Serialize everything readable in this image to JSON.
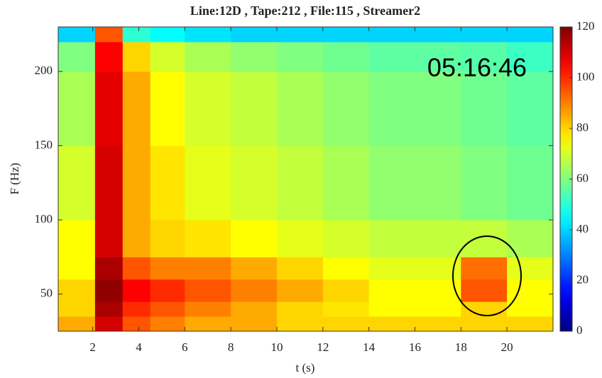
{
  "chart_data": {
    "type": "spectrogram",
    "title": "Line:12D , Tape:212 , File:115 , Streamer2",
    "x_label": "t (s)",
    "y_label": "F (Hz)",
    "annotation": "05:16:46",
    "xbins": [
      0.5,
      2.1,
      3.3,
      4.5,
      6,
      8,
      10,
      12,
      14,
      18,
      20,
      22
    ],
    "ybins": [
      25,
      35,
      45,
      60,
      75,
      100,
      150,
      200,
      220,
      230
    ],
    "values": [
      [
        85,
        110,
        95,
        90,
        85,
        85,
        80,
        80,
        80,
        80,
        80
      ],
      [
        80,
        115,
        100,
        95,
        90,
        85,
        80,
        78,
        75,
        80,
        75
      ],
      [
        80,
        118,
        105,
        100,
        95,
        90,
        85,
        80,
        75,
        95,
        75
      ],
      [
        75,
        115,
        95,
        90,
        90,
        85,
        80,
        75,
        72,
        92,
        72
      ],
      [
        75,
        110,
        85,
        80,
        78,
        75,
        72,
        70,
        68,
        68,
        65
      ],
      [
        70,
        110,
        85,
        78,
        72,
        70,
        68,
        65,
        62,
        60,
        58
      ],
      [
        65,
        108,
        85,
        75,
        70,
        68,
        65,
        62,
        60,
        58,
        56
      ],
      [
        60,
        105,
        80,
        70,
        65,
        62,
        60,
        58,
        56,
        55,
        52
      ],
      [
        40,
        95,
        50,
        45,
        42,
        40,
        40,
        40,
        40,
        40,
        40
      ]
    ],
    "xlim": [
      0.5,
      22
    ],
    "ylim": [
      25,
      230
    ],
    "xticks": [
      2,
      4,
      6,
      8,
      10,
      12,
      14,
      16,
      18,
      20
    ],
    "yticks": [
      50,
      100,
      150,
      200
    ],
    "clim": [
      0,
      120
    ],
    "colorbar_ticks": [
      0,
      20,
      40,
      60,
      80,
      100,
      120
    ],
    "colormap": "jet"
  }
}
